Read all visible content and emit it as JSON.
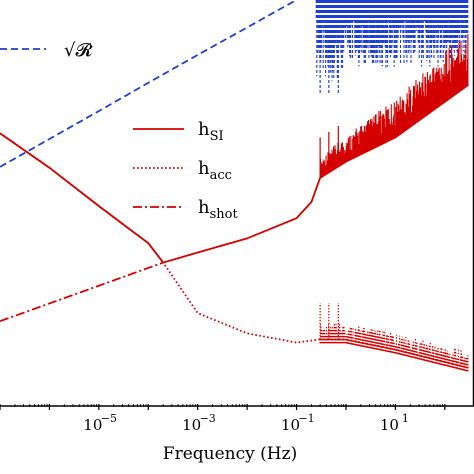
{
  "chart_data": {
    "type": "line",
    "xlabel": "Frequency (Hz)",
    "ylabel": "",
    "x_scale": "log",
    "y_scale": "log",
    "x_ticks": [
      {
        "value": 1e-05,
        "base": "10",
        "exp": "−5"
      },
      {
        "value": 0.001,
        "base": "10",
        "exp": "−3"
      },
      {
        "value": 0.1,
        "base": "10",
        "exp": "−1"
      },
      {
        "value": 10,
        "base": "10",
        "exp": "1"
      }
    ],
    "xlim": [
      1e-07,
      1000
    ],
    "ylim": [
      0,
      1
    ],
    "grid": false,
    "legends": [
      {
        "placement": "top-left",
        "entries": [
          {
            "series": "sqrtR",
            "text": "√𝓡",
            "style": "dashed",
            "color": "#1f3fd0"
          }
        ]
      },
      {
        "placement": "center",
        "entries": [
          {
            "series": "hSI",
            "base": "h",
            "sub": "SI",
            "style": "solid",
            "color": "#d40000"
          },
          {
            "series": "hacc",
            "base": "h",
            "sub": "acc",
            "style": "dotted",
            "color": "#d40000"
          },
          {
            "series": "hshot",
            "base": "h",
            "sub": "shot",
            "style": "dashdot",
            "color": "#d40000"
          }
        ]
      }
    ],
    "series": [
      {
        "id": "sqrtR",
        "color": "#1f3fd0",
        "style": "dashed",
        "x": [
          1e-07,
          1e-06,
          1e-05,
          0.0001,
          0.001,
          0.01,
          0.05,
          0.1
        ],
        "y": [
          0.587,
          0.656,
          0.725,
          0.795,
          0.864,
          0.932,
          0.98,
          1.0
        ]
      },
      {
        "id": "hSI",
        "color": "#d40000",
        "style": "solid",
        "x": [
          1e-07,
          1e-06,
          1e-05,
          0.0001,
          0.0002,
          0.001,
          0.01,
          0.1,
          0.2,
          0.3,
          1,
          10,
          300
        ],
        "y": [
          0.67,
          0.585,
          0.49,
          0.398,
          0.35,
          0.375,
          0.41,
          0.46,
          0.5,
          0.56,
          0.6,
          0.66,
          0.79
        ]
      },
      {
        "id": "hacc",
        "color": "#d40000",
        "style": "dotted",
        "x": [
          1e-07,
          1e-06,
          1e-05,
          0.0001,
          0.0002,
          0.001,
          0.01,
          0.1,
          0.3,
          1,
          10,
          300
        ],
        "y": [
          0.67,
          0.585,
          0.49,
          0.398,
          0.35,
          0.225,
          0.175,
          0.152,
          0.16,
          0.16,
          0.135,
          0.09
        ]
      },
      {
        "id": "hshot",
        "color": "#d40000",
        "style": "dashdot",
        "x": [
          1e-07,
          0.0002
        ],
        "y": [
          0.205,
          0.35
        ]
      }
    ]
  }
}
